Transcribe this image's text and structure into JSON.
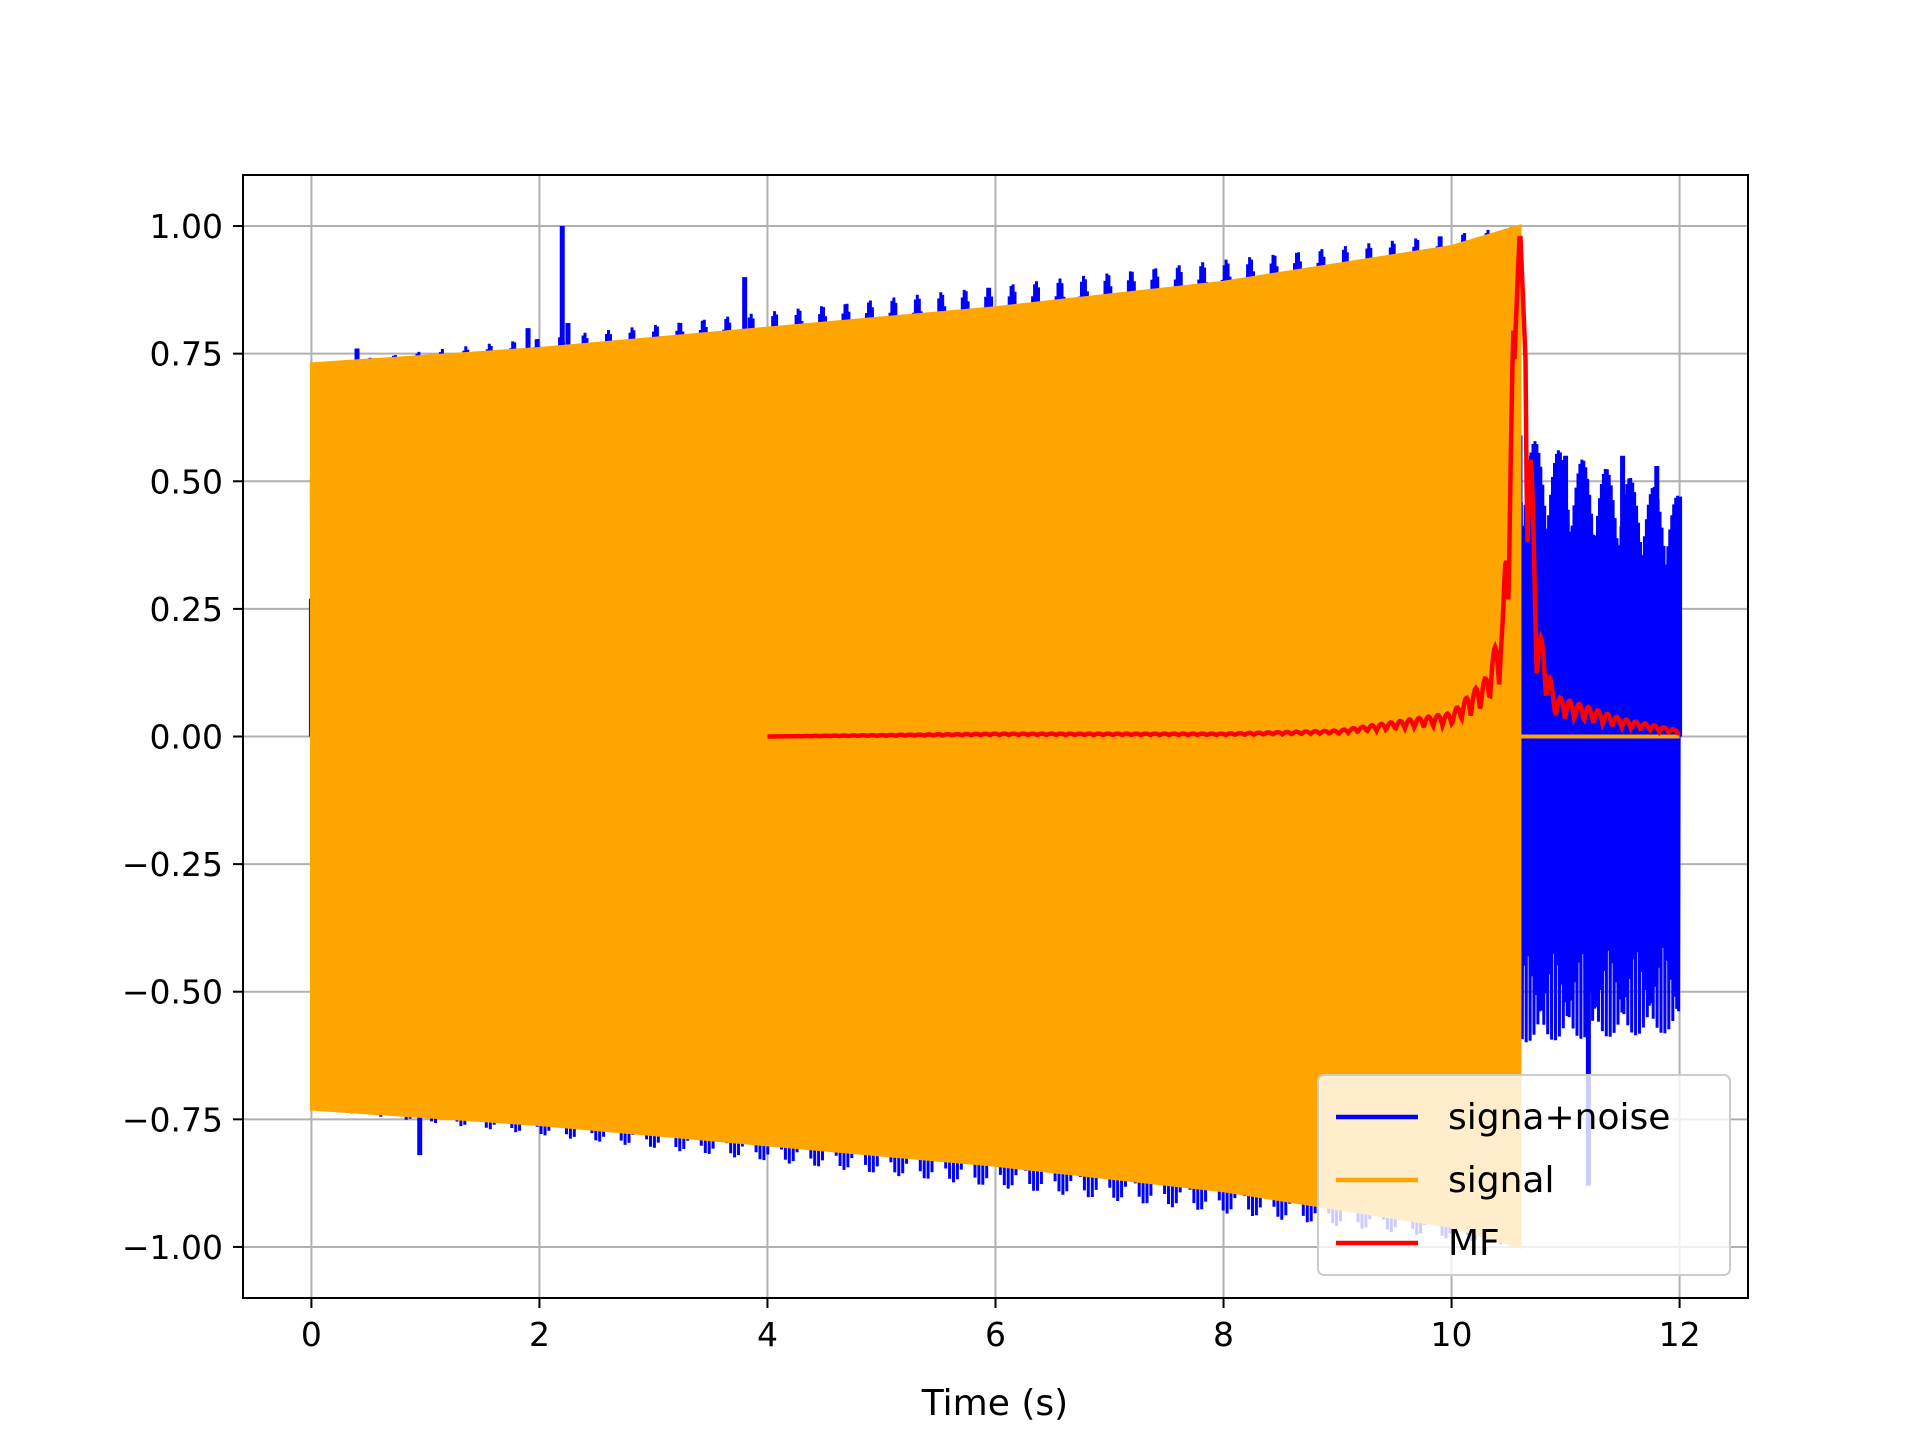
{
  "chart_data": {
    "type": "line",
    "title": "",
    "xlabel": "Time (s)",
    "ylabel": "",
    "xlim": [
      -0.6,
      12.6
    ],
    "ylim": [
      -1.1,
      1.1
    ],
    "xticks": [
      0,
      2,
      4,
      6,
      8,
      10,
      12
    ],
    "xtick_labels": [
      "0",
      "2",
      "4",
      "6",
      "8",
      "10",
      "12"
    ],
    "yticks": [
      -1.0,
      -0.75,
      -0.5,
      -0.25,
      0.0,
      0.25,
      0.5,
      0.75,
      1.0
    ],
    "ytick_labels": [
      "−1.00",
      "−0.75",
      "−0.50",
      "−0.25",
      "0.00",
      "0.25",
      "0.50",
      "0.75",
      "1.00"
    ],
    "grid": true,
    "legend_position": "lower-right",
    "series": [
      {
        "name": "signa+noise",
        "color": "#0000ff",
        "style": "dense-oscillation",
        "description_points": {
          "x": [
            0,
            0.4,
            0.95,
            1.9,
            2.2,
            2.25,
            3.8,
            4.4,
            10.6,
            10.7,
            11.0,
            11.2,
            11.5,
            11.8,
            12.0
          ],
          "y_peak": [
            0.27,
            0.76,
            -0.82,
            0.8,
            1.0,
            0.81,
            0.9,
            -0.8,
            0.59,
            0.55,
            0.55,
            -0.88,
            0.55,
            0.53,
            0.47
          ]
        },
        "envelope_x": [
          0,
          10.6,
          10.6,
          12.0
        ],
        "envelope_upper": [
          0.73,
          1.0,
          0.59,
          0.47
        ],
        "envelope_lower": [
          -0.73,
          -1.0,
          -0.6,
          -0.58
        ]
      },
      {
        "name": "signal",
        "color": "#ffa500",
        "style": "dense-oscillation-envelope",
        "x": [
          0,
          2,
          4,
          6,
          8,
          10,
          10.6,
          10.6,
          12.0
        ],
        "y_upper": [
          0.73,
          0.76,
          0.8,
          0.84,
          0.89,
          0.96,
          1.0,
          0.0,
          0.0
        ],
        "y_lower": [
          -0.73,
          -0.76,
          -0.8,
          -0.84,
          -0.89,
          -0.96,
          -1.0,
          0.0,
          0.0
        ]
      },
      {
        "name": "MF",
        "color": "#ff0000",
        "style": "line",
        "x": [
          4.0,
          6.0,
          8.0,
          9.0,
          10.0,
          10.3,
          10.45,
          10.6,
          10.75,
          10.9,
          11.5,
          12.0
        ],
        "y": [
          0.0,
          0.005,
          0.005,
          0.01,
          0.04,
          0.1,
          0.2,
          1.0,
          0.2,
          0.07,
          0.03,
          0.01
        ]
      }
    ]
  }
}
